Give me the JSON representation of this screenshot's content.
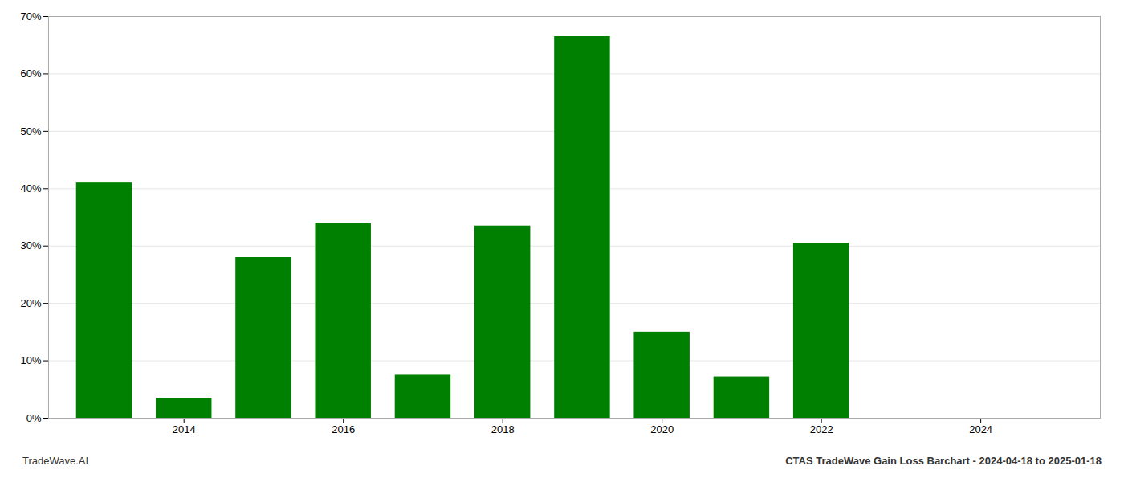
{
  "chart_data": {
    "type": "bar",
    "title": "CTAS TradeWave Gain Loss Barchart - 2024-04-18 to 2025-01-18",
    "annotations": [
      "TradeWave.AI"
    ],
    "x": [
      2013,
      2014,
      2015,
      2016,
      2017,
      2018,
      2019,
      2020,
      2021,
      2022,
      2023
    ],
    "values": [
      0.41,
      0.035,
      0.28,
      0.34,
      0.075,
      0.335,
      0.665,
      0.15,
      0.072,
      0.305,
      0.0
    ],
    "color": "#008000",
    "xlim": [
      2012.3,
      2025.5
    ],
    "xticks": [
      2014,
      2016,
      2018,
      2020,
      2022,
      2024
    ],
    "ylim": [
      0,
      0.7
    ],
    "yticks": [
      {
        "value": 0.0,
        "label": "0%"
      },
      {
        "value": 0.1,
        "label": "10%"
      },
      {
        "value": 0.2,
        "label": "20%"
      },
      {
        "value": 0.3,
        "label": "30%"
      },
      {
        "value": 0.4,
        "label": "40%"
      },
      {
        "value": 0.5,
        "label": "50%"
      },
      {
        "value": 0.6,
        "label": "60%"
      },
      {
        "value": 0.7,
        "label": "70%"
      }
    ],
    "grid": true
  }
}
